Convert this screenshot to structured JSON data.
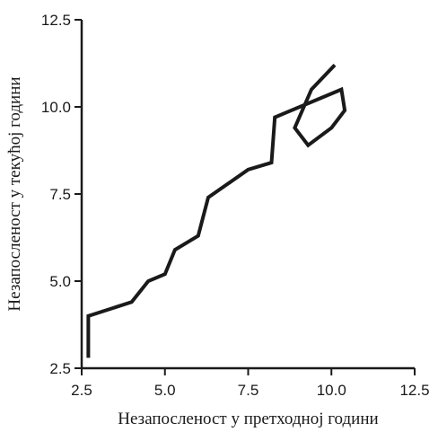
{
  "chart_data": {
    "type": "line",
    "title": "",
    "xlabel": "Незапосленост у претходној години",
    "ylabel": "Незапосленост у текућој години",
    "xlim": [
      2.5,
      12.5
    ],
    "ylim": [
      2.5,
      12.5
    ],
    "x_ticks": [
      "2.5",
      "5.0",
      "7.5",
      "10.0",
      "12.5"
    ],
    "y_ticks": [
      "2.5",
      "5.0",
      "7.5",
      "10.0",
      "12.5"
    ],
    "grid": false,
    "legend": "none",
    "line_color": "#1a1a1a",
    "series": [
      {
        "x": [
          2.7,
          2.7,
          4.0,
          4.5,
          5.0,
          5.3,
          6.0,
          6.3,
          7.5,
          8.2,
          8.3,
          10.3,
          10.4,
          10.0,
          9.3,
          8.9,
          9.4,
          10.1
        ],
        "y": [
          2.8,
          4.0,
          4.4,
          5.0,
          5.2,
          5.9,
          6.3,
          7.4,
          8.2,
          8.4,
          9.7,
          10.5,
          9.9,
          9.4,
          8.9,
          9.4,
          10.5,
          11.2
        ]
      }
    ]
  }
}
